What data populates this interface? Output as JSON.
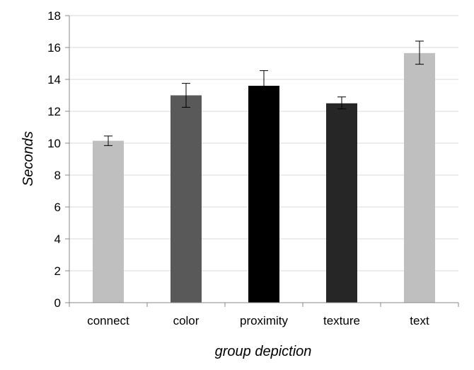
{
  "chart_data": {
    "type": "bar",
    "title": "",
    "xlabel": "group depiction",
    "ylabel": "Seconds",
    "ylim": [
      0,
      18
    ],
    "yticks": [
      0,
      2,
      4,
      6,
      8,
      10,
      12,
      14,
      16,
      18
    ],
    "grid": true,
    "legend": "none",
    "categories": [
      "connect",
      "color",
      "proximity",
      "texture",
      "text"
    ],
    "values": [
      10.15,
      13.0,
      13.6,
      12.5,
      15.65
    ],
    "error_low": [
      9.85,
      12.25,
      12.7,
      12.15,
      14.95
    ],
    "error_high": [
      10.45,
      13.75,
      14.55,
      12.9,
      16.4
    ],
    "colors": [
      "#bfbfbf",
      "#595959",
      "#000000",
      "#262626",
      "#bfbfbf"
    ]
  }
}
